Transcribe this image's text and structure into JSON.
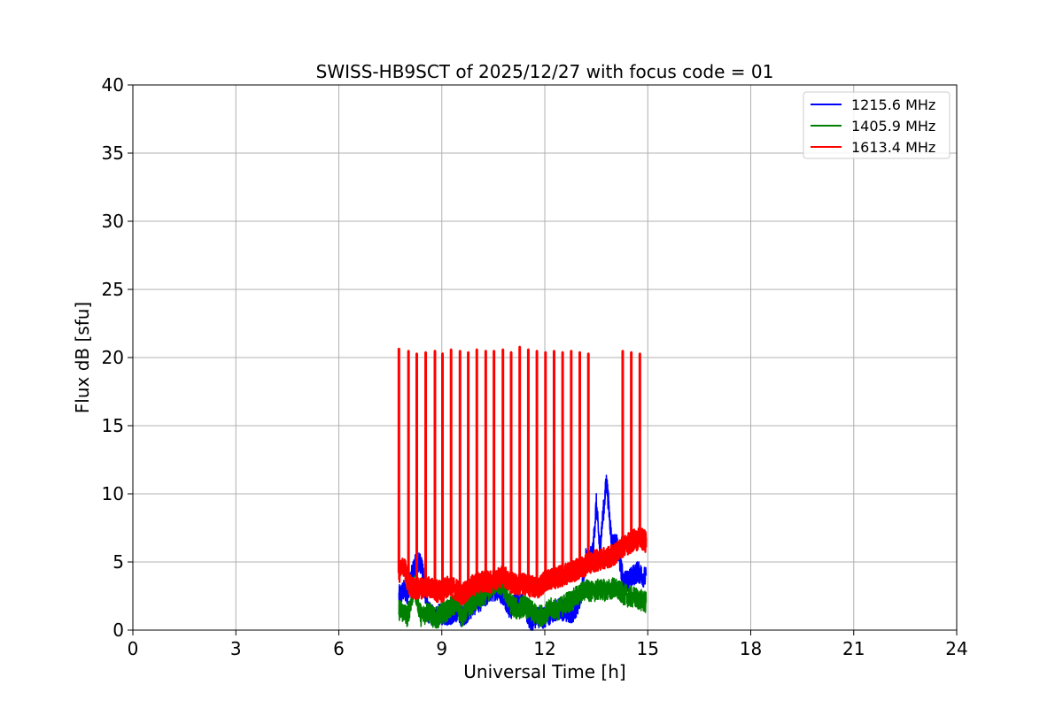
{
  "chart_data": {
    "type": "line",
    "title": "SWISS-HB9SCT of 2025/12/27 with focus code = 01",
    "xlabel": "Universal Time [h]",
    "ylabel": "Flux dB [sfu]",
    "xlim": [
      0,
      24
    ],
    "ylim": [
      0,
      40
    ],
    "xticks": [
      "0",
      "3",
      "6",
      "9",
      "12",
      "15",
      "18",
      "21",
      "24"
    ],
    "yticks": [
      "0",
      "5",
      "10",
      "15",
      "20",
      "25",
      "30",
      "35",
      "40"
    ],
    "grid": true,
    "legend_position": "top-right",
    "series": [
      {
        "name": "1215.6 MHz",
        "color": "#0000ff",
        "x": [
          7.75,
          7.9,
          8.0,
          8.2,
          8.4,
          8.6,
          8.8,
          9.0,
          9.2,
          9.4,
          9.6,
          9.8,
          10.0,
          10.2,
          10.4,
          10.6,
          10.8,
          11.0,
          11.2,
          11.4,
          11.6,
          11.8,
          12.0,
          12.2,
          12.4,
          12.6,
          12.8,
          13.0,
          13.2,
          13.4,
          13.5,
          13.6,
          13.8,
          13.95,
          14.1,
          14.3,
          14.5,
          14.7,
          14.85,
          14.95
        ],
        "y": [
          2.5,
          2.9,
          2.7,
          4.7,
          5.0,
          1.3,
          1.0,
          1.2,
          1.1,
          1.4,
          1.0,
          1.5,
          2.0,
          2.3,
          2.8,
          3.0,
          2.6,
          1.5,
          2.2,
          1.8,
          0.6,
          1.0,
          0.9,
          1.2,
          1.6,
          1.4,
          1.3,
          2.0,
          5.2,
          5.6,
          9.3,
          6.0,
          11.0,
          6.4,
          6.2,
          3.5,
          3.8,
          4.3,
          4.0,
          3.8
        ]
      },
      {
        "name": "1405.9 MHz",
        "color": "#008000",
        "x": [
          7.75,
          7.9,
          8.0,
          8.2,
          8.4,
          8.6,
          8.8,
          9.0,
          9.2,
          9.4,
          9.6,
          9.8,
          10.0,
          10.2,
          10.4,
          10.6,
          10.8,
          11.0,
          11.2,
          11.4,
          11.6,
          11.8,
          12.0,
          12.2,
          12.4,
          12.6,
          12.8,
          13.0,
          13.2,
          13.4,
          13.6,
          13.8,
          14.0,
          14.2,
          14.4,
          14.6,
          14.8,
          14.95
        ],
        "y": [
          1.5,
          1.3,
          1.0,
          3.2,
          1.0,
          1.4,
          0.8,
          1.2,
          1.5,
          2.0,
          1.0,
          1.8,
          2.2,
          2.5,
          3.0,
          3.5,
          3.1,
          2.0,
          1.5,
          1.8,
          1.4,
          1.0,
          1.2,
          1.6,
          1.5,
          2.0,
          2.2,
          2.6,
          3.0,
          2.8,
          3.0,
          2.9,
          3.1,
          2.8,
          2.5,
          2.4,
          2.2,
          2.0
        ]
      },
      {
        "name": "1613.4 MHz",
        "color": "#ff0000",
        "x": [
          7.75,
          7.9,
          8.0,
          8.2,
          8.4,
          8.6,
          8.8,
          9.0,
          9.2,
          9.4,
          9.6,
          9.8,
          10.0,
          10.2,
          10.4,
          10.6,
          10.8,
          11.0,
          11.2,
          11.4,
          11.6,
          11.8,
          12.0,
          12.2,
          12.4,
          12.6,
          12.8,
          13.0,
          13.2,
          13.4,
          13.6,
          13.8,
          14.0,
          14.2,
          14.4,
          14.6,
          14.8,
          14.95
        ],
        "y": [
          4.2,
          4.8,
          3.5,
          3.0,
          3.1,
          3.2,
          2.9,
          2.8,
          3.3,
          3.0,
          2.6,
          3.1,
          3.4,
          3.6,
          3.5,
          3.8,
          4.0,
          3.5,
          3.3,
          3.4,
          3.2,
          3.1,
          3.6,
          3.8,
          3.9,
          4.1,
          4.3,
          4.5,
          4.8,
          5.0,
          5.2,
          5.3,
          5.5,
          6.0,
          6.3,
          6.6,
          6.7,
          6.5
        ]
      }
    ],
    "spikes": {
      "series": "1613.4 MHz",
      "x": [
        7.75,
        8.03,
        8.27,
        8.53,
        8.8,
        9.02,
        9.27,
        9.53,
        9.77,
        10.02,
        10.28,
        10.52,
        10.78,
        11.02,
        11.27,
        11.52,
        11.77,
        12.02,
        12.27,
        12.52,
        12.77,
        13.02,
        13.27,
        14.27,
        14.52,
        14.77
      ],
      "y": [
        20.7,
        20.5,
        20.3,
        20.4,
        20.5,
        20.3,
        20.6,
        20.5,
        20.4,
        20.6,
        20.5,
        20.5,
        20.6,
        20.4,
        20.8,
        20.6,
        20.5,
        20.4,
        20.5,
        20.4,
        20.5,
        20.4,
        20.3,
        20.5,
        20.4,
        20.3
      ]
    }
  }
}
